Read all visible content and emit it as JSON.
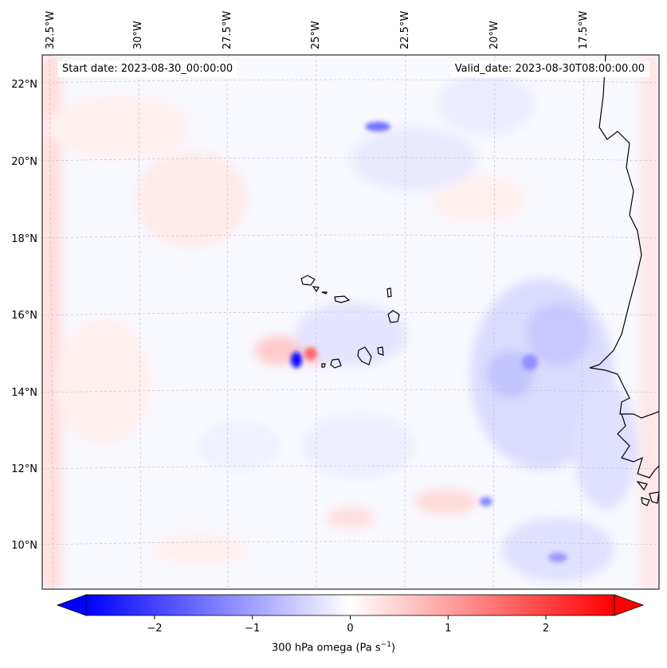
{
  "header": {
    "start_date": "Start date: 2023-08-30_00:00:00",
    "valid_date": "Valid_date: 2023-08-30T08:00:00.00"
  },
  "map": {
    "lon_labels": [
      "32.5°W",
      "30°W",
      "27.5°W",
      "25°W",
      "22.5°W",
      "20°W",
      "17.5°W"
    ],
    "lat_labels": [
      "22°N",
      "20°N",
      "18°N",
      "16°N",
      "14°N",
      "12°N",
      "10°N"
    ],
    "coastline_color": "#000000",
    "gridline_style": "dashed"
  },
  "colorbar": {
    "label_prefix": "300 hPa omega (Pa s",
    "label_exp": "−1",
    "label_suffix": ")",
    "ticks": [
      "−2",
      "−1",
      "0",
      "1",
      "2"
    ],
    "range": [
      -2.7,
      2.7
    ],
    "colormap": "bwr",
    "extend": "both",
    "low_color": "#0000ff",
    "mid_color": "#ffffff",
    "high_color": "#ff0000"
  }
}
